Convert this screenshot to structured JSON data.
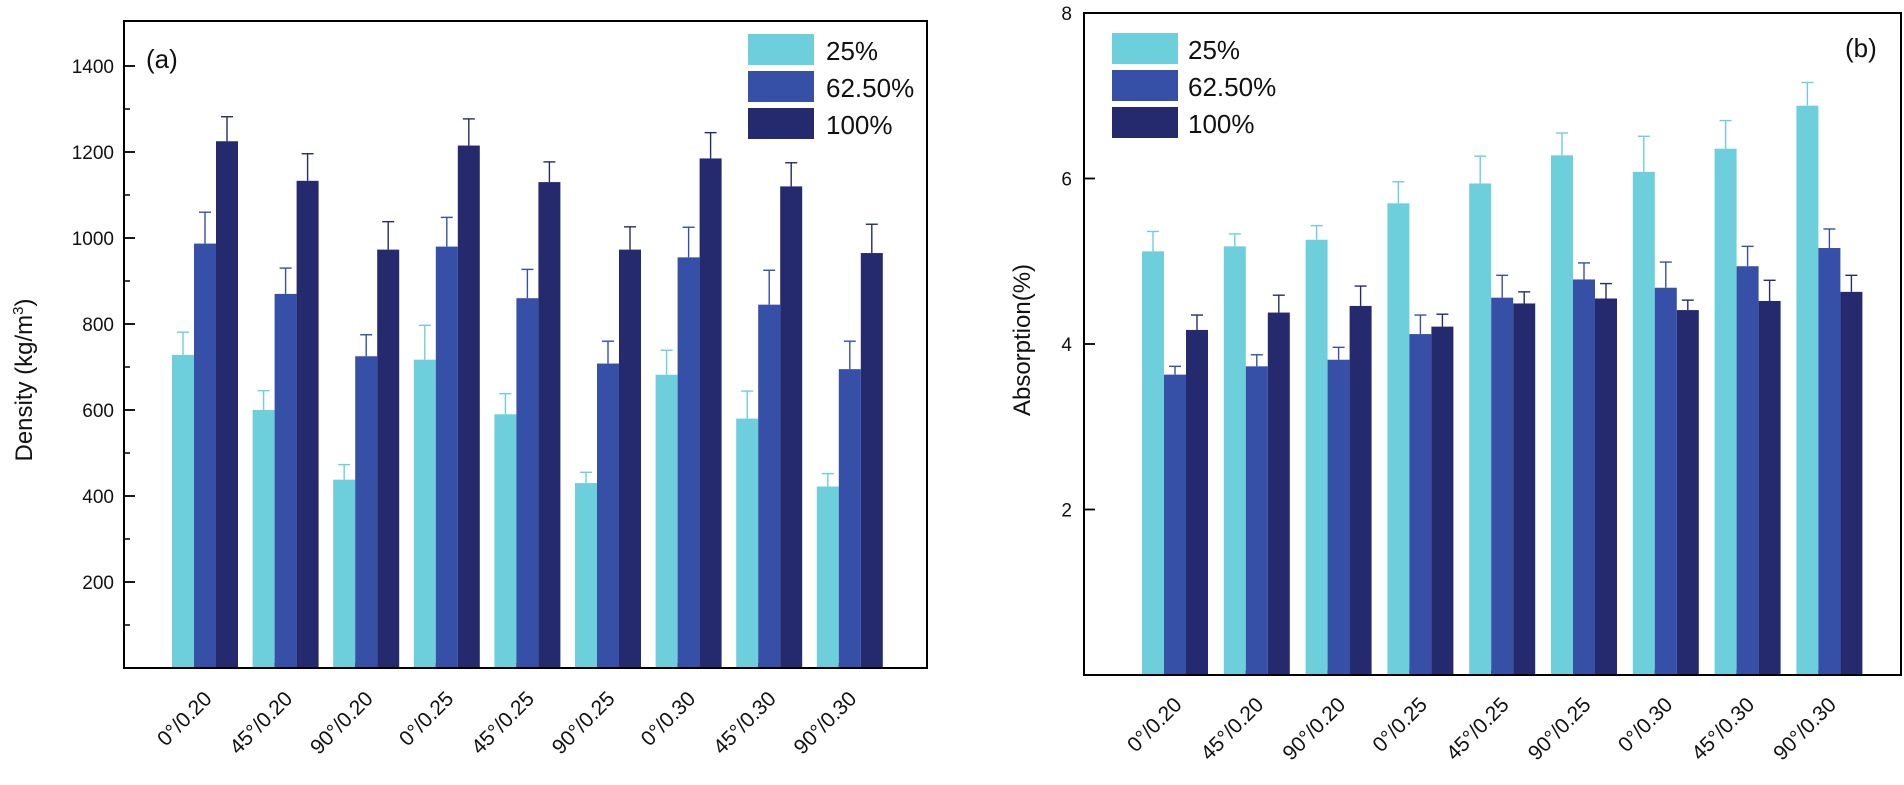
{
  "chart_data": [
    {
      "type": "bar",
      "panel_label": "(a)",
      "ylabel": "Density (kg/m³)",
      "ylabel_base": "Density (kg/m",
      "ylabel_sup": "3",
      "ylabel_close": ")",
      "xlabel": "",
      "ylim": [
        0,
        1450
      ],
      "yticks": [
        200,
        400,
        600,
        800,
        1000,
        1200,
        1400
      ],
      "minor_ticks": true,
      "legend_position": "top-right",
      "categories": [
        "0°/0.20",
        "45°/0.20",
        "90°/0.20",
        "0°/0.25",
        "45°/0.25",
        "90°/0.25",
        "0°/0.30",
        "45°/0.30",
        "90°/0.30"
      ],
      "series": [
        {
          "name": "25%",
          "color": "#6dcfdc",
          "values": [
            728,
            600,
            438,
            717,
            590,
            430,
            682,
            580,
            422
          ],
          "errors": [
            53,
            45,
            35,
            80,
            48,
            25,
            57,
            64,
            30
          ]
        },
        {
          "name": "62.50%",
          "color": "#3650a8",
          "values": [
            987,
            870,
            725,
            980,
            860,
            708,
            955,
            845,
            695
          ],
          "errors": [
            73,
            60,
            50,
            68,
            67,
            52,
            70,
            80,
            65
          ]
        },
        {
          "name": "100%",
          "color": "#252a6e",
          "values": [
            1225,
            1133,
            973,
            1215,
            1130,
            973,
            1185,
            1120,
            965
          ],
          "errors": [
            57,
            63,
            65,
            62,
            47,
            53,
            60,
            55,
            67
          ]
        }
      ]
    },
    {
      "type": "bar",
      "panel_label": "(b)",
      "ylabel": "Absorption(%)",
      "xlabel": "",
      "ylim": [
        0,
        8
      ],
      "yticks": [
        2,
        4,
        6,
        8
      ],
      "minor_ticks": false,
      "legend_position": "top-left",
      "categories": [
        "0°/0.20",
        "45°/0.20",
        "90°/0.20",
        "0°/0.25",
        "45°/0.25",
        "90°/0.25",
        "0°/0.30",
        "45°/0.30",
        "90°/0.30"
      ],
      "series": [
        {
          "name": "25%",
          "color": "#6dcfdc",
          "values": [
            5.12,
            5.18,
            5.26,
            5.7,
            5.94,
            6.28,
            6.08,
            6.36,
            6.88
          ],
          "errors": [
            0.24,
            0.15,
            0.17,
            0.26,
            0.33,
            0.27,
            0.43,
            0.34,
            0.28
          ]
        },
        {
          "name": "62.50%",
          "color": "#3650a8",
          "values": [
            3.63,
            3.73,
            3.81,
            4.12,
            4.56,
            4.78,
            4.68,
            4.94,
            5.16
          ],
          "errors": [
            0.1,
            0.14,
            0.15,
            0.23,
            0.27,
            0.2,
            0.31,
            0.24,
            0.23
          ]
        },
        {
          "name": "100%",
          "color": "#252a6e",
          "values": [
            4.17,
            4.38,
            4.46,
            4.21,
            4.49,
            4.55,
            4.41,
            4.52,
            4.63
          ],
          "errors": [
            0.18,
            0.21,
            0.24,
            0.15,
            0.14,
            0.18,
            0.12,
            0.25,
            0.2
          ]
        }
      ]
    }
  ]
}
